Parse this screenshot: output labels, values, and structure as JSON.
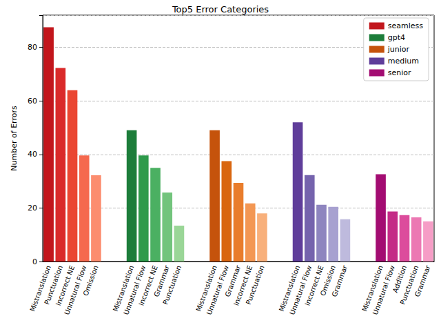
{
  "chart_data": {
    "type": "bar",
    "title": "Top5 Error Categories",
    "y_label": "Number of Errors",
    "ylim": [
      0,
      92
    ],
    "yticks": [
      0,
      20,
      40,
      60,
      80
    ],
    "grid": true,
    "legend": "upper right",
    "series": [
      {
        "name": "seamless",
        "color": "#c2161c",
        "categories": [
          "Mistranslation",
          "Punctuation",
          "Incorrect NE",
          "Unnatural Flow",
          "Omission"
        ],
        "values": [
          87.5,
          72.3,
          64,
          39.6,
          32.2
        ],
        "colors": [
          "#c2161c",
          "#da2a2a",
          "#ea4632",
          "#f5694e",
          "#fc8d6f"
        ]
      },
      {
        "name": "gpt4",
        "color": "#1c7d3a",
        "categories": [
          "Mistranslation",
          "Unnatural Flow",
          "Incorrect NE",
          "Grammar",
          "Punctuation"
        ],
        "values": [
          49,
          39.6,
          35,
          25.8,
          13.4
        ],
        "colors": [
          "#1c7d3a",
          "#2e9a4b",
          "#4bb062",
          "#72c47c",
          "#9ad697"
        ]
      },
      {
        "name": "junior",
        "color": "#c5530c",
        "categories": [
          "Mistranslation",
          "Unnatural Flow",
          "Grammar",
          "Incorrect NE",
          "Punctuation"
        ],
        "values": [
          49,
          37.5,
          29.4,
          21.7,
          18
        ],
        "colors": [
          "#c5530c",
          "#d9660f",
          "#e97d2c",
          "#f39753",
          "#f8b07b"
        ]
      },
      {
        "name": "medium",
        "color": "#5f3d9a",
        "categories": [
          "Mistranslation",
          "Unnatural Flow",
          "Incorrect NE",
          "Omission",
          "Grammar"
        ],
        "values": [
          52,
          32.3,
          21.2,
          20.4,
          15.8
        ],
        "colors": [
          "#5f3d9a",
          "#7563ad",
          "#8e85bf",
          "#a7a1d0",
          "#bebadd"
        ]
      },
      {
        "name": "senior",
        "color": "#a30c72",
        "categories": [
          "Mistranslation",
          "Unnatural Flow",
          "Addition",
          "Punctuation",
          "Grammar"
        ],
        "values": [
          32.6,
          18.7,
          17.3,
          16.5,
          15
        ],
        "colors": [
          "#a30c72",
          "#c42b86",
          "#dc4c9c",
          "#ec78b3",
          "#f69dc6"
        ]
      }
    ]
  }
}
